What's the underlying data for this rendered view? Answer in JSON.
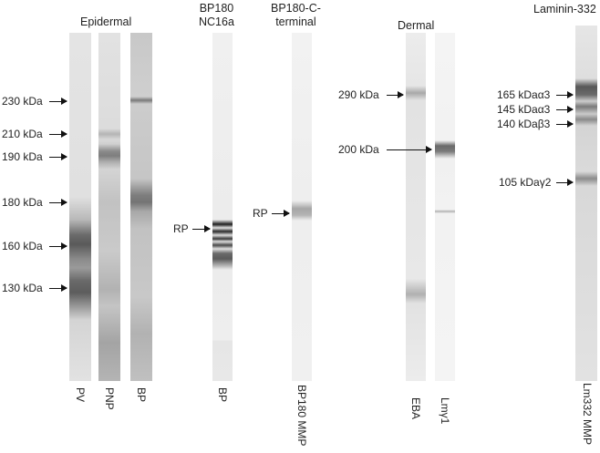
{
  "headers": {
    "epidermal": "Epidermal",
    "bp180_nc16a_line1": "BP180",
    "bp180_nc16a_line2": "NC16a",
    "bp180_c_line1": "BP180-C-",
    "bp180_c_line2": "terminal",
    "dermal": "Dermal",
    "laminin": "Laminin-332"
  },
  "markers_left": [
    "230 kDa",
    "210 kDa",
    "190 kDa",
    "180 kDa",
    "160 kDa",
    "130 kDa"
  ],
  "rp_label": "RP",
  "markers_dermal": [
    "290 kDa",
    "200 kDa"
  ],
  "markers_laminin": [
    "165 kDaα3",
    "145 kDaα3",
    "140 kDaβ3",
    "105 kDaγ2"
  ],
  "lane_labels": {
    "pv": "PV",
    "pnp": "PNP",
    "bp": "BP",
    "bp_nc16a": "BP",
    "bp180_mmp": "BP180 MMP",
    "eba": "EBA",
    "lmy1": "Lmγ1",
    "lm332_mmp": "Lm332 MMP"
  }
}
